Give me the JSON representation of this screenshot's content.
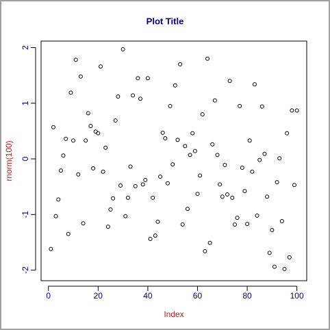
{
  "chart_data": {
    "type": "scatter",
    "title": "Plot Title",
    "x_label": "Index",
    "y_label": "rnorm(100)",
    "color": "#000000",
    "x": [
      1,
      2,
      3,
      4,
      5,
      6,
      7,
      8,
      9,
      10,
      11,
      12,
      13,
      14,
      15,
      16,
      17,
      18,
      19,
      20,
      21,
      22,
      23,
      24,
      25,
      26,
      27,
      28,
      29,
      30,
      31,
      32,
      33,
      34,
      35,
      36,
      37,
      38,
      39,
      40,
      41,
      42,
      43,
      44,
      45,
      46,
      47,
      48,
      49,
      50,
      51,
      52,
      53,
      54,
      55,
      56,
      57,
      58,
      59,
      60,
      61,
      62,
      63,
      64,
      65,
      66,
      67,
      68,
      69,
      70,
      71,
      72,
      73,
      74,
      75,
      76,
      77,
      78,
      79,
      80,
      81,
      82,
      83,
      84,
      85,
      86,
      87,
      88,
      89,
      90,
      91,
      92,
      93,
      94,
      95,
      96,
      97,
      98,
      99,
      100
    ],
    "values": [
      -1.62,
      0.57,
      -1.03,
      -0.73,
      -0.21,
      0.06,
      0.36,
      -1.35,
      1.19,
      0.33,
      1.78,
      -0.28,
      1.48,
      -1.16,
      0.33,
      0.82,
      0.59,
      -0.17,
      0.49,
      0.46,
      1.66,
      -0.23,
      0.2,
      -1.22,
      -0.91,
      -0.71,
      0.69,
      1.12,
      -0.48,
      1.97,
      -1.03,
      -0.7,
      -0.14,
      1.14,
      -0.49,
      1.45,
      1.08,
      -0.46,
      -0.38,
      1.45,
      -1.44,
      -0.7,
      -1.38,
      -1.13,
      -0.32,
      0.47,
      0.37,
      -0.44,
      0.95,
      -0.1,
      1.32,
      0.34,
      1.7,
      -1.18,
      0.23,
      -0.9,
      0.07,
      0.46,
      0.14,
      -0.63,
      -0.3,
      0.8,
      -1.66,
      1.8,
      -1.51,
      0.26,
      1.05,
      0.07,
      -0.46,
      -0.68,
      -0.11,
      -0.64,
      1.4,
      -0.7,
      -1.18,
      -1.06,
      0.95,
      -0.16,
      -0.58,
      -1.17,
      0.33,
      -0.23,
      1.34,
      -1.02,
      -0.02,
      0.94,
      0.09,
      -0.68,
      -1.69,
      -1.28,
      -1.94,
      -0.42,
      0.01,
      -1.12,
      -1.98,
      0.46,
      -1.77,
      0.87,
      -0.47,
      0.87
    ],
    "xlim": [
      -2.96,
      103.96
    ],
    "ylim": [
      -2.19,
      2.117
    ],
    "xticks": [
      0,
      20,
      40,
      60,
      80,
      100
    ],
    "yticks": [
      -2,
      -1,
      0,
      1,
      2
    ]
  }
}
